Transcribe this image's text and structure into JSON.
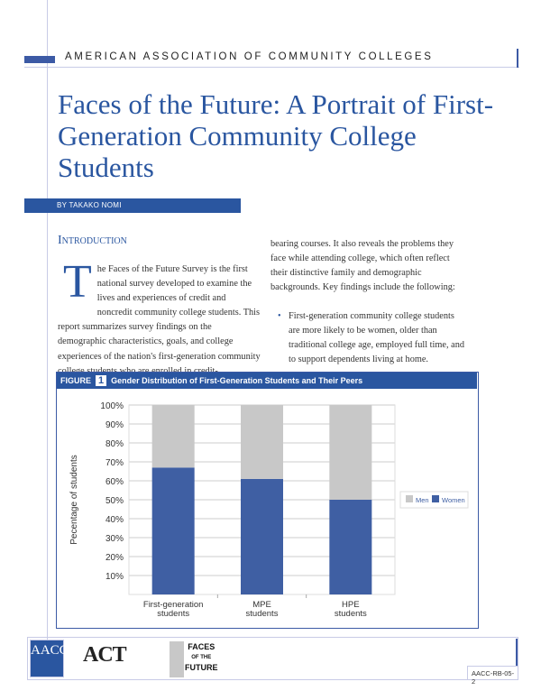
{
  "header": {
    "organization": "AMERICAN ASSOCIATION OF COMMUNITY COLLEGES"
  },
  "title": "Faces of the Future: A Portrait of First-Generation Community College Students",
  "byline": "BY TAKAKO NOMI",
  "intro": {
    "heading": "Introduction",
    "dropcap": "T",
    "col1": "he Faces of the Future Survey is the first national survey developed to examine the lives and experiences of credit and noncredit community college students. This report summarizes survey findings on the demographic characteristics, goals, and college experiences of the nation's first-generation community college students who are enrolled in credit-",
    "col2": "bearing courses. It also reveals the problems they face while attending college, which often reflect their distinctive family and demographic backgrounds. Key findings include the following:",
    "bullets": [
      "First-generation community college students are more likely to be women, older than traditional college age, employed full time, and to support dependents living at home."
    ]
  },
  "figure": {
    "label": "FIGURE",
    "number": "1",
    "title": "Gender Distribution of First-Generation Students and Their Peers"
  },
  "chart_data": {
    "type": "bar",
    "stacked": true,
    "categories": [
      [
        "First-generation",
        "students"
      ],
      [
        "MPE",
        "students"
      ],
      [
        "HPE",
        "students"
      ]
    ],
    "series": [
      {
        "name": "Women",
        "values": [
          67,
          61,
          50
        ],
        "color": "#3f5fa3"
      },
      {
        "name": "Men",
        "values": [
          33,
          39,
          50
        ],
        "color": "#c8c8c8"
      }
    ],
    "ylabel": "Pecentage of students",
    "yticks": [
      "10%",
      "20%",
      "30%",
      "40%",
      "50%",
      "60%",
      "70%",
      "80%",
      "90%",
      "100%"
    ],
    "ylim": [
      0,
      100
    ],
    "grid": true,
    "legend": {
      "placement": "right",
      "entries": [
        "Men",
        "Women"
      ]
    }
  },
  "footer": {
    "logos": [
      "AACC",
      "ACT",
      "FACES OF THE FUTURE"
    ],
    "act": "ACT",
    "aacc": "AACC",
    "faces": [
      "FACES",
      "OF THE",
      "FUTURE"
    ],
    "code": "AACC-RB-05-2"
  },
  "colors": {
    "accent": "#2a56a0"
  }
}
